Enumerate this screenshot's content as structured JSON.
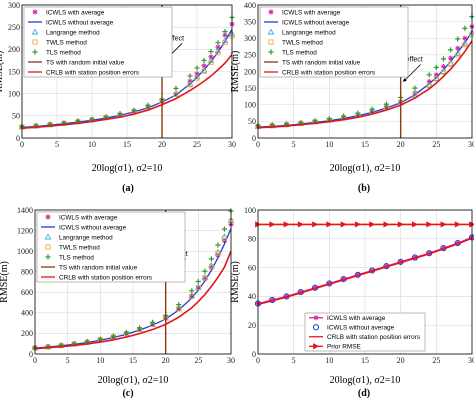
{
  "colors": {
    "magenta": "#e0209a",
    "blue": "#1f3fd6",
    "cyan": "#2aa7d8",
    "orange": "#f0a030",
    "green": "#2e9a2e",
    "brown": "#8a3a10",
    "red": "#e01818",
    "grid": "#d9d9d9"
  },
  "chart_data": [
    {
      "type": "line",
      "label": "(a)",
      "xlabel": "20log(σ1), σ2=10",
      "ylabel": "RMSE(m)",
      "xlim": [
        0,
        30
      ],
      "ylim": [
        0,
        300
      ],
      "xticks": [
        0,
        5,
        10,
        15,
        20,
        25,
        30
      ],
      "yticks": [
        0,
        50,
        100,
        150,
        200,
        250,
        300
      ],
      "grid": true,
      "legend_position": "top-left",
      "annotation": {
        "text": "Threshold effect",
        "x": 20,
        "y": 175
      },
      "x": [
        0,
        2,
        4,
        6,
        8,
        10,
        12,
        14,
        16,
        18,
        20,
        22,
        24,
        25,
        26,
        27,
        28,
        29,
        30
      ],
      "series": [
        {
          "name": "ICWLS with average",
          "style": "marker",
          "marker": "asterisk",
          "color": "magenta",
          "values": [
            25,
            27,
            30,
            33,
            37,
            41,
            46,
            52,
            60,
            70,
            83,
            100,
            128,
            145,
            163,
            183,
            205,
            232,
            257
          ]
        },
        {
          "name": "ICWLS without average",
          "style": "line",
          "color": "blue",
          "values": [
            24,
            26,
            29,
            32,
            36,
            40,
            45,
            51,
            59,
            68,
            81,
            97,
            122,
            137,
            154,
            172,
            194,
            218,
            245
          ]
        },
        {
          "name": "Langrange method",
          "style": "marker",
          "marker": "triangle",
          "color": "cyan",
          "values": [
            25,
            27,
            30,
            33,
            37,
            41,
            46,
            52,
            60,
            70,
            83,
            98,
            122,
            138,
            153,
            175,
            197,
            220,
            235
          ]
        },
        {
          "name": "TWLS method",
          "style": "marker",
          "marker": "square",
          "color": "orange",
          "values": [
            25,
            27,
            30,
            33,
            37,
            41,
            46,
            52,
            60,
            70,
            83,
            98,
            120,
            135,
            150,
            170,
            192,
            215,
            230
          ]
        },
        {
          "name": "TLS method",
          "style": "marker",
          "marker": "plus",
          "color": "green",
          "values": [
            26,
            28,
            31,
            34,
            38,
            42,
            48,
            55,
            63,
            74,
            88,
            112,
            140,
            158,
            175,
            195,
            215,
            240,
            272
          ]
        },
        {
          "name": "TS with random initial value",
          "style": "vline",
          "color": "brown",
          "x_value": 20
        },
        {
          "name": "CRLB with station position errors",
          "style": "line",
          "color": "red",
          "values": [
            22,
            24,
            27,
            30,
            33,
            37,
            42,
            47,
            54,
            63,
            75,
            89,
            107,
            117,
            128,
            140,
            154,
            169,
            188
          ]
        }
      ]
    },
    {
      "type": "line",
      "label": "(b)",
      "xlabel": "20log(σ1), σ2=10",
      "ylabel": "RMSE(m)",
      "xlim": [
        0,
        30
      ],
      "ylim": [
        0,
        400
      ],
      "xticks": [
        0,
        5,
        10,
        15,
        20,
        25,
        30
      ],
      "yticks": [
        0,
        50,
        100,
        150,
        200,
        250,
        300,
        350,
        400
      ],
      "grid": true,
      "legend_position": "top-left",
      "annotation": {
        "text": "Threshold effect",
        "x": 20,
        "y": 170
      },
      "x": [
        0,
        2,
        4,
        6,
        8,
        10,
        12,
        14,
        16,
        18,
        20,
        22,
        24,
        25,
        26,
        27,
        28,
        29,
        30
      ],
      "series": [
        {
          "name": "ICWLS with average",
          "style": "marker",
          "marker": "asterisk",
          "color": "magenta",
          "values": [
            35,
            37,
            40,
            44,
            49,
            54,
            61,
            69,
            80,
            93,
            110,
            135,
            170,
            190,
            215,
            240,
            270,
            300,
            335
          ]
        },
        {
          "name": "ICWLS without average",
          "style": "line",
          "color": "blue",
          "values": [
            33,
            35,
            38,
            42,
            47,
            52,
            59,
            67,
            77,
            90,
            106,
            130,
            163,
            182,
            205,
            230,
            258,
            287,
            320
          ]
        },
        {
          "name": "Langrange method",
          "style": "marker",
          "marker": "triangle",
          "color": "cyan",
          "values": [
            35,
            37,
            40,
            44,
            49,
            54,
            61,
            69,
            80,
            93,
            108,
            130,
            160,
            180,
            200,
            225,
            255,
            285,
            318
          ]
        },
        {
          "name": "TWLS method",
          "style": "marker",
          "marker": "square",
          "color": "orange",
          "values": [
            35,
            37,
            40,
            44,
            49,
            54,
            61,
            69,
            80,
            93,
            108,
            128,
            158,
            178,
            198,
            222,
            250,
            280,
            312
          ]
        },
        {
          "name": "TLS method",
          "style": "marker",
          "marker": "plus",
          "color": "green",
          "values": [
            37,
            39,
            42,
            46,
            52,
            58,
            66,
            75,
            87,
            102,
            122,
            150,
            190,
            212,
            238,
            265,
            298,
            330,
            365
          ]
        },
        {
          "name": "TS with random initial value",
          "style": "vline",
          "color": "brown",
          "x_value": 20
        },
        {
          "name": "CRLB with station position errors",
          "style": "line",
          "color": "red",
          "values": [
            31,
            33,
            36,
            40,
            44,
            49,
            55,
            62,
            72,
            84,
            99,
            120,
            148,
            165,
            185,
            207,
            232,
            260,
            292
          ]
        }
      ]
    },
    {
      "type": "line",
      "label": "(c)",
      "xlabel": "20log(σ1), σ2=10",
      "ylabel": "RMSE(m)",
      "xlim": [
        0,
        30
      ],
      "ylim": [
        0,
        1400
      ],
      "xticks": [
        0,
        5,
        10,
        15,
        20,
        25,
        30
      ],
      "yticks": [
        0,
        200,
        400,
        600,
        800,
        1000,
        1200,
        1400
      ],
      "grid": true,
      "legend_position": "top-left",
      "annotation": {
        "text": "Threshold effect",
        "x": 20,
        "y": 760
      },
      "x": [
        0,
        2,
        4,
        6,
        8,
        10,
        12,
        14,
        16,
        18,
        20,
        22,
        24,
        25,
        26,
        27,
        28,
        29,
        30
      ],
      "series": [
        {
          "name": "ICWLS with average",
          "style": "marker",
          "marker": "asterisk",
          "color": "magenta",
          "values": [
            60,
            70,
            82,
            97,
            115,
            138,
            165,
            198,
            238,
            288,
            350,
            440,
            560,
            640,
            730,
            840,
            960,
            1100,
            1260
          ]
        },
        {
          "name": "ICWLS without average",
          "style": "line",
          "color": "blue",
          "values": [
            58,
            68,
            80,
            94,
            112,
            134,
            160,
            192,
            232,
            280,
            340,
            428,
            545,
            622,
            710,
            815,
            935,
            1070,
            1220
          ]
        },
        {
          "name": "Langrange method",
          "style": "marker",
          "marker": "triangle",
          "color": "cyan",
          "values": [
            60,
            70,
            82,
            97,
            115,
            138,
            165,
            198,
            238,
            288,
            350,
            440,
            565,
            650,
            745,
            860,
            990,
            1140,
            1300
          ]
        },
        {
          "name": "TWLS method",
          "style": "marker",
          "marker": "square",
          "color": "orange",
          "values": [
            60,
            70,
            82,
            97,
            115,
            138,
            165,
            198,
            238,
            288,
            350,
            440,
            562,
            645,
            740,
            850,
            980,
            1125,
            1290
          ]
        },
        {
          "name": "TLS method",
          "style": "marker",
          "marker": "plus",
          "color": "green",
          "values": [
            62,
            72,
            85,
            100,
            120,
            145,
            174,
            210,
            254,
            308,
            376,
            480,
            615,
            705,
            805,
            925,
            1060,
            1215,
            1390
          ]
        },
        {
          "name": "TS with random initial value",
          "style": "vline",
          "color": "brown",
          "x_value": 20
        },
        {
          "name": "CRLB with station position errors",
          "style": "line",
          "color": "red",
          "values": [
            52,
            61,
            71,
            83,
            98,
            116,
            138,
            165,
            198,
            238,
            288,
            358,
            450,
            510,
            578,
            657,
            745,
            845,
            1000
          ]
        }
      ]
    },
    {
      "type": "line",
      "label": "(d)",
      "xlabel": "20log(σ1), σ2=10",
      "ylabel": "RMSE(m)",
      "xlim": [
        0,
        30
      ],
      "ylim": [
        0,
        100
      ],
      "xticks": [
        0,
        5,
        10,
        15,
        20,
        25,
        30
      ],
      "yticks": [
        0,
        20,
        40,
        60,
        80,
        100
      ],
      "grid": true,
      "legend_position": "lower-center",
      "x": [
        0,
        2,
        4,
        6,
        8,
        10,
        12,
        14,
        16,
        18,
        20,
        22,
        24,
        26,
        28,
        30
      ],
      "series": [
        {
          "name": "ICWLS with average",
          "style": "line+marker",
          "marker": "asterisk",
          "color": "magenta",
          "values": [
            35,
            37.5,
            40,
            43,
            46,
            49,
            52,
            55,
            58,
            61,
            64,
            67,
            70,
            73.5,
            77,
            81
          ]
        },
        {
          "name": "ICWLS without average",
          "style": "marker",
          "marker": "circle",
          "color": "blue",
          "values": [
            35,
            37.5,
            40,
            43,
            46,
            49,
            52,
            55,
            58,
            61,
            64,
            67,
            70,
            73.5,
            77,
            81
          ]
        },
        {
          "name": "CRLB with station position errors",
          "style": "line",
          "color": "red",
          "values": [
            34.5,
            37,
            39.5,
            42.5,
            45.5,
            48.5,
            51.5,
            54.5,
            57.5,
            60.5,
            63.5,
            66.5,
            69.5,
            73,
            76.5,
            80.5
          ]
        },
        {
          "name": "Prior RMSE",
          "style": "line+marker",
          "marker": "triangle-right",
          "color": "red",
          "values": [
            90,
            90,
            90,
            90,
            90,
            90,
            90,
            90,
            90,
            90,
            90,
            90,
            90,
            90,
            90,
            90
          ]
        }
      ]
    }
  ]
}
